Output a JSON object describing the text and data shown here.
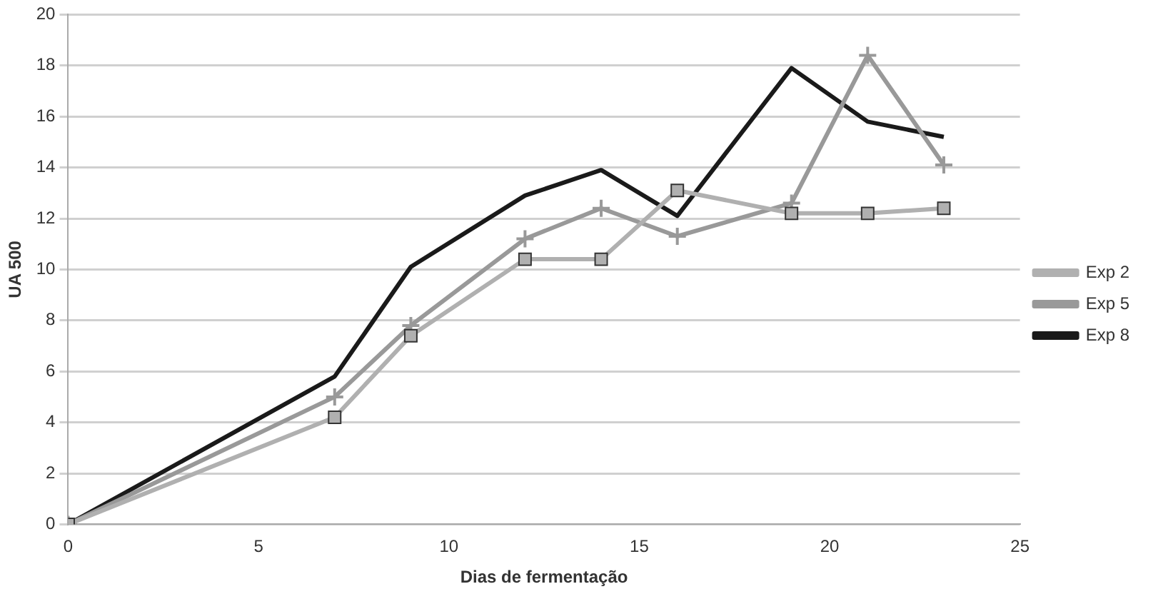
{
  "chart_data": {
    "type": "line",
    "xlabel": "Dias de fermentação",
    "ylabel": "UA 500",
    "x": [
      0,
      7,
      9,
      12,
      14,
      16,
      19,
      21,
      23
    ],
    "series": [
      {
        "name": "Exp 2",
        "color": "#b0b0b0",
        "marker": "square",
        "values": [
          0,
          4.2,
          7.4,
          10.4,
          10.4,
          13.1,
          12.2,
          12.2,
          12.4
        ]
      },
      {
        "name": "Exp 5",
        "color": "#999999",
        "marker": "cross",
        "values": [
          0,
          5,
          7.8,
          11.2,
          12.4,
          11.3,
          12.6,
          18.4,
          14.1
        ]
      },
      {
        "name": "Exp 8",
        "color": "#1a1a1a",
        "marker": "none",
        "values": [
          0,
          5.8,
          10.1,
          12.9,
          13.9,
          12.1,
          17.9,
          15.8,
          15.2
        ]
      }
    ],
    "xlim": [
      0,
      25
    ],
    "xticks": [
      0,
      5,
      10,
      15,
      20,
      25
    ],
    "ylim": [
      0,
      20
    ],
    "yticks": [
      0,
      2,
      4,
      6,
      8,
      10,
      12,
      14,
      16,
      18,
      20
    ],
    "grid": "y",
    "legend": "right"
  }
}
